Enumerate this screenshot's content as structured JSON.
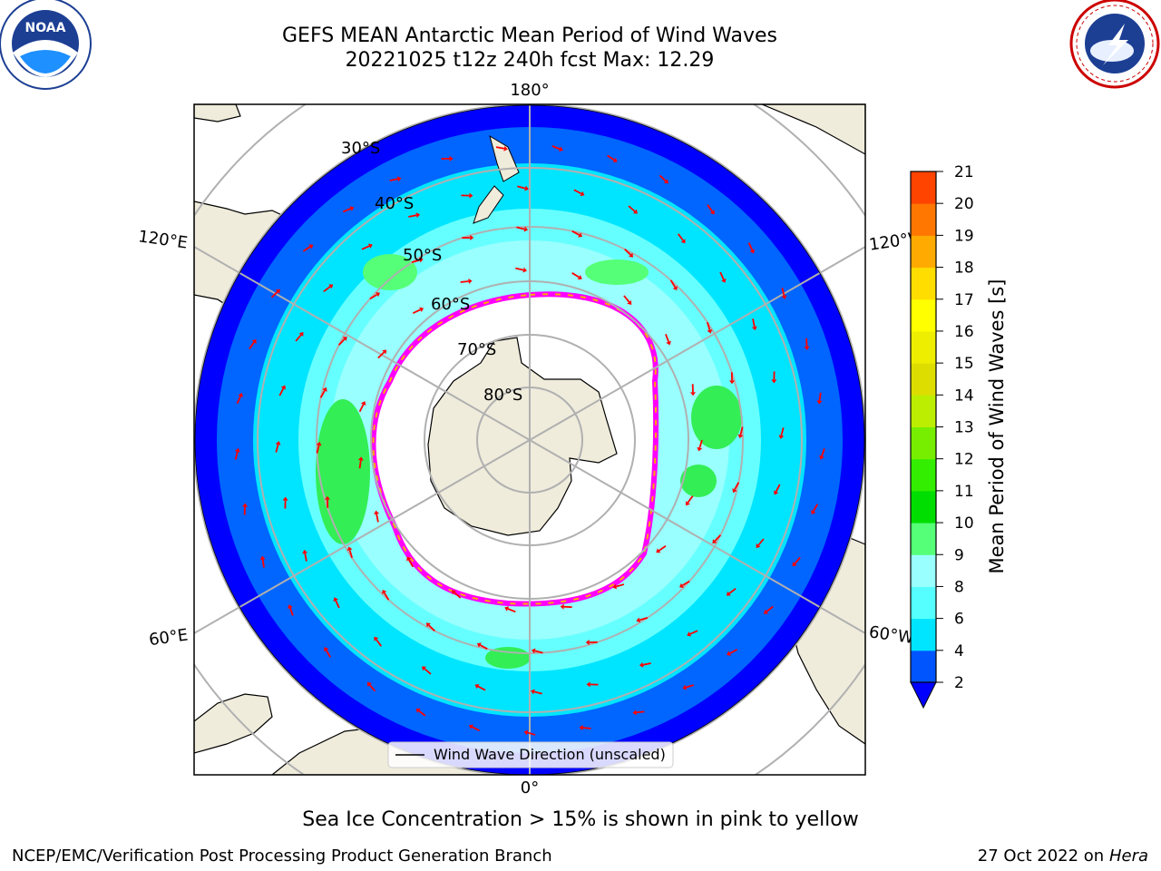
{
  "header": {
    "title_line1": "GEFS MEAN Antarctic Mean Period of Wind Waves",
    "title_line2": "20221025 t12z 240h fcst   Max: 12.29"
  },
  "logos": {
    "left": {
      "text": "NOAA",
      "ring_text": "NATIONAL OCEANIC AND ATMOSPHERIC ADMINISTRATION · U.S. DEPARTMENT OF COMMERCE"
    },
    "right": {
      "ring_text": "NATIONAL WEATHER SERVICE"
    }
  },
  "map": {
    "longitude_labels": {
      "top": "180°",
      "bottom": "0°",
      "upper_left": "120°E",
      "upper_right": "120°W",
      "lower_left": "60°E",
      "lower_right": "60°W"
    },
    "latitude_labels": [
      "30°S",
      "40°S",
      "50°S",
      "60°S",
      "70°S",
      "80°S"
    ],
    "legend_label": "Wind Wave Direction (unscaled)",
    "colors": {
      "land": "#efecdc",
      "ice_free_white": "#ffffff",
      "arrow": "#ff0000",
      "ice_edge": [
        "#ff00ff",
        "#ffa500",
        "#ffff00"
      ]
    }
  },
  "colorbar": {
    "label": "Mean Period of Wind Waves [s]",
    "ticks": [
      "2",
      "4",
      "6",
      "8",
      "9",
      "10",
      "11",
      "12",
      "13",
      "14",
      "15",
      "16",
      "17",
      "18",
      "19",
      "20",
      "21"
    ],
    "colors": [
      "#0055ff",
      "#00e5ff",
      "#55ffff",
      "#99ffff",
      "#55ff77",
      "#00dd00",
      "#33ee00",
      "#77ee00",
      "#bbee00",
      "#dddd00",
      "#eeee00",
      "#ffff00",
      "#ffdd00",
      "#ffaa00",
      "#ff7700",
      "#ff4400",
      "#ff0000"
    ],
    "under_color": "#0000ff"
  },
  "subtitle": "Sea Ice Concentration > 15% is shown in pink to yellow",
  "footer": {
    "left": "NCEP/EMC/Verification Post Processing Product Generation Branch",
    "right_prefix": "27 Oct 2022 on ",
    "right_host": "Hera"
  }
}
